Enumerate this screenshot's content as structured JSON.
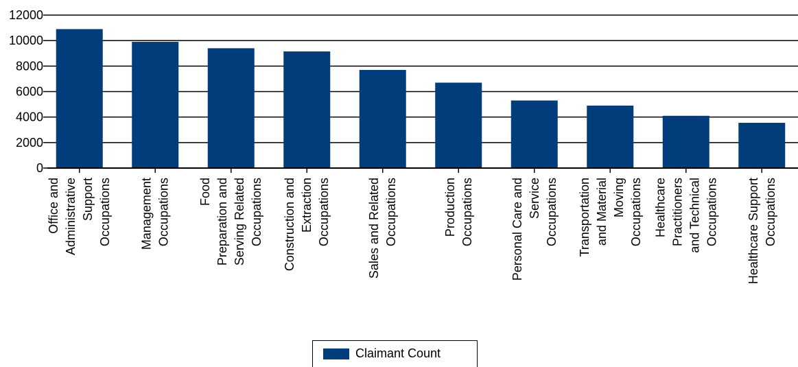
{
  "chart_data": {
    "type": "bar",
    "categories": [
      [
        "Office and",
        "Administrative",
        "Support",
        "Occupations"
      ],
      [
        "Management",
        "Occupations"
      ],
      [
        "Food",
        "Preparation and",
        "Serving Related",
        "Occupations"
      ],
      [
        "Construction and",
        "Extraction",
        "Occupations"
      ],
      [
        "Sales and Related",
        "Occupations"
      ],
      [
        "Production",
        "Occupations"
      ],
      [
        "Personal Care and",
        "Service",
        "Occupations"
      ],
      [
        "Transportation",
        "and Material",
        "Moving",
        "Occupations"
      ],
      [
        "Healthcare",
        "Practitioners",
        "and Technical",
        "Occupations"
      ],
      [
        "Healthcare Support",
        "Occupations"
      ]
    ],
    "series": [
      {
        "name": "Claimant Count",
        "values": [
          10900,
          9900,
          9400,
          9150,
          7700,
          6700,
          5300,
          4900,
          4100,
          3550
        ]
      }
    ],
    "ylim": [
      0,
      12000
    ],
    "yticks": [
      0,
      2000,
      4000,
      6000,
      8000,
      10000,
      12000
    ],
    "grid": true,
    "legend_position": "bottom-center",
    "colors": {
      "bar": "#003d7a",
      "grid": "#000000",
      "axis": "#000000"
    }
  }
}
